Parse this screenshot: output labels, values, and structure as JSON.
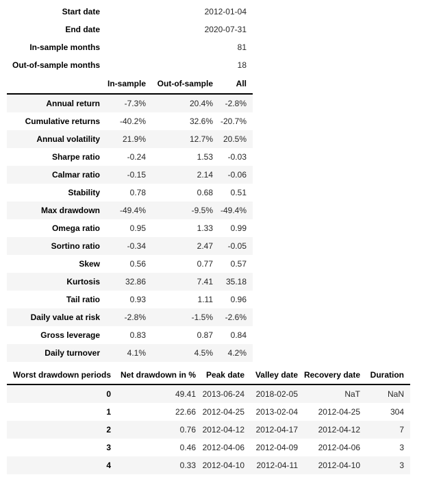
{
  "colors": {
    "stripe": "#f5f5f5",
    "header_rule": "#000000",
    "text": "#262626",
    "bold_text": "#000000",
    "background": "#ffffff"
  },
  "chart_data": [
    {
      "type": "table",
      "columns": null,
      "rows": [
        [
          "Start date",
          "2012-01-04"
        ],
        [
          "End date",
          "2020-07-31"
        ],
        [
          "In-sample months",
          "81"
        ],
        [
          "Out-of-sample months",
          "18"
        ]
      ]
    },
    {
      "type": "table",
      "columns": [
        "",
        "In-sample",
        "Out-of-sample",
        "All"
      ],
      "rows": [
        [
          "Annual return",
          "-7.3%",
          "20.4%",
          "-2.8%"
        ],
        [
          "Cumulative returns",
          "-40.2%",
          "32.6%",
          "-20.7%"
        ],
        [
          "Annual volatility",
          "21.9%",
          "12.7%",
          "20.5%"
        ],
        [
          "Sharpe ratio",
          "-0.24",
          "1.53",
          "-0.03"
        ],
        [
          "Calmar ratio",
          "-0.15",
          "2.14",
          "-0.06"
        ],
        [
          "Stability",
          "0.78",
          "0.68",
          "0.51"
        ],
        [
          "Max drawdown",
          "-49.4%",
          "-9.5%",
          "-49.4%"
        ],
        [
          "Omega ratio",
          "0.95",
          "1.33",
          "0.99"
        ],
        [
          "Sortino ratio",
          "-0.34",
          "2.47",
          "-0.05"
        ],
        [
          "Skew",
          "0.56",
          "0.77",
          "0.57"
        ],
        [
          "Kurtosis",
          "32.86",
          "7.41",
          "35.18"
        ],
        [
          "Tail ratio",
          "0.93",
          "1.11",
          "0.96"
        ],
        [
          "Daily value at risk",
          "-2.8%",
          "-1.5%",
          "-2.6%"
        ],
        [
          "Gross leverage",
          "0.83",
          "0.87",
          "0.84"
        ],
        [
          "Daily turnover",
          "4.1%",
          "4.5%",
          "4.2%"
        ]
      ]
    },
    {
      "type": "table",
      "columns": [
        "Worst drawdown periods",
        "Net drawdown in %",
        "Peak date",
        "Valley date",
        "Recovery date",
        "Duration"
      ],
      "rows": [
        [
          "0",
          "49.41",
          "2013-06-24",
          "2018-02-05",
          "NaT",
          "NaN"
        ],
        [
          "1",
          "22.66",
          "2012-04-25",
          "2013-02-04",
          "2012-04-25",
          "304"
        ],
        [
          "2",
          "0.76",
          "2012-04-12",
          "2012-04-17",
          "2012-04-12",
          "7"
        ],
        [
          "3",
          "0.46",
          "2012-04-06",
          "2012-04-09",
          "2012-04-06",
          "3"
        ],
        [
          "4",
          "0.33",
          "2012-04-10",
          "2012-04-11",
          "2012-04-10",
          "3"
        ]
      ]
    }
  ]
}
